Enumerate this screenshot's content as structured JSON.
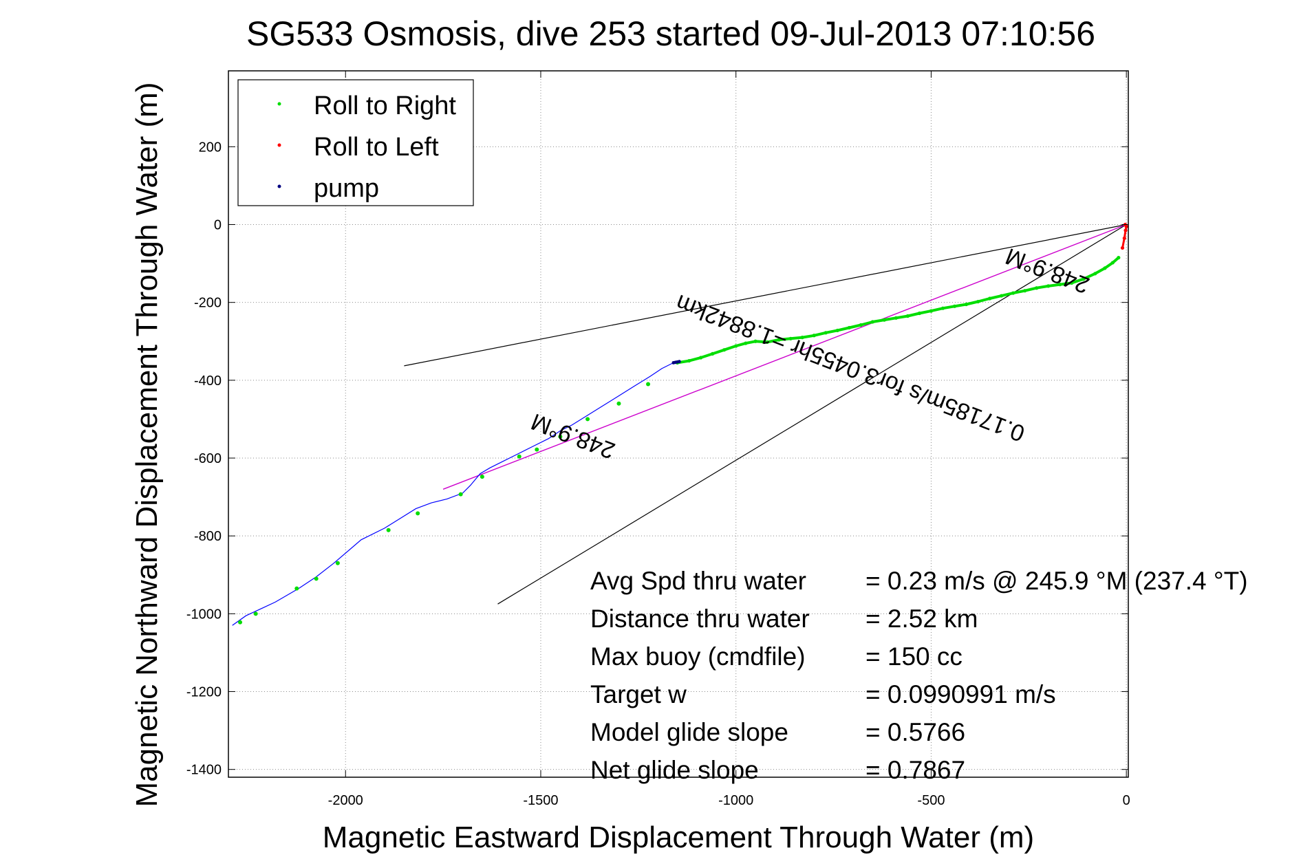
{
  "chart_data": {
    "type": "line",
    "title": "SG533 Osmosis, dive 253 started 09-Jul-2013 07:10:56",
    "xlabel": "Magnetic Eastward Displacement Through Water (m)",
    "ylabel": "Magnetic Northward Displacement Through Water (m)",
    "xlim": [
      -2300,
      5
    ],
    "ylim": [
      -1420,
      395
    ],
    "xticks": [
      -2000,
      -1500,
      -1000,
      -500,
      0
    ],
    "yticks": [
      200,
      0,
      -200,
      -400,
      -600,
      -800,
      -1000,
      -1200,
      -1400
    ],
    "xtick_labels": [
      "-2000",
      "-1500",
      "-1000",
      "-500",
      "0"
    ],
    "ytick_labels": [
      "200",
      "0",
      "-200",
      "-400",
      "-600",
      "-800",
      "-1000",
      "-1200",
      "-1400"
    ],
    "grid": true,
    "legend_position": "top-left",
    "colors": {
      "roll_right": "#00dd00",
      "roll_left": "#ff0000",
      "pump": "#000080",
      "track": "#0000ff",
      "course_line": "#cc00cc",
      "cone": "#000000"
    },
    "legend": [
      {
        "label": "Roll to Right",
        "color": "#00dd00"
      },
      {
        "label": "Roll to Left",
        "color": "#ff0000"
      },
      {
        "label": "pump",
        "color": "#000080"
      }
    ],
    "series": [
      {
        "name": "track",
        "x": [
          -2290,
          -2255,
          -2180,
          -2120,
          -2075,
          -2030,
          -1960,
          -1900,
          -1860,
          -1820,
          -1780,
          -1740,
          -1700,
          -1680,
          -1655,
          -1630,
          -1600,
          -1560,
          -1520,
          -1480,
          -1450,
          -1420,
          -1380,
          -1340,
          -1300,
          -1260,
          -1220,
          -1190,
          -1160,
          -1150
        ],
        "y": [
          -1030,
          -1005,
          -970,
          -935,
          -905,
          -870,
          -810,
          -780,
          -755,
          -730,
          -715,
          -705,
          -690,
          -670,
          -640,
          -625,
          -610,
          -590,
          -570,
          -550,
          -530,
          -515,
          -490,
          -465,
          -440,
          -415,
          -390,
          -370,
          -355,
          -352
        ]
      },
      {
        "name": "Roll to Right",
        "x": [
          -1150,
          -1120,
          -1090,
          -1060,
          -1030,
          -1000,
          -975,
          -950,
          -920,
          -890,
          -860,
          -830,
          -800,
          -770,
          -740,
          -710,
          -680,
          -650,
          -620,
          -590,
          -560,
          -530,
          -500,
          -470,
          -440,
          -410,
          -380,
          -350,
          -320,
          -290,
          -260,
          -230,
          -200,
          -170,
          -140,
          -110,
          -80,
          -55,
          -35,
          -20
        ],
        "y": [
          -355,
          -350,
          -342,
          -332,
          -322,
          -312,
          -305,
          -300,
          -302,
          -296,
          -293,
          -290,
          -285,
          -278,
          -272,
          -265,
          -258,
          -250,
          -245,
          -240,
          -235,
          -228,
          -222,
          -215,
          -210,
          -205,
          -198,
          -190,
          -183,
          -176,
          -170,
          -163,
          -158,
          -154,
          -150,
          -140,
          -126,
          -112,
          -98,
          -85
        ]
      },
      {
        "name": "Roll to Left",
        "x": [
          -10,
          -5,
          -2,
          0,
          -3
        ],
        "y": [
          -60,
          -35,
          -15,
          -5,
          0
        ]
      },
      {
        "name": "pump",
        "x": [
          -1160,
          -1155,
          -1150,
          -1145
        ],
        "y": [
          -355,
          -354,
          -353,
          -352
        ]
      },
      {
        "name": "course_line",
        "x": [
          -1750,
          0
        ],
        "y": [
          -680,
          0
        ]
      },
      {
        "name": "cone_upper",
        "x": [
          -1850,
          0
        ],
        "y": [
          -363,
          0
        ]
      },
      {
        "name": "cone_lower",
        "x": [
          -1610,
          0
        ],
        "y": [
          -975,
          0
        ]
      }
    ],
    "right_roll_markers": {
      "x": [
        -2270,
        -2230,
        -2125,
        -2075,
        -2020,
        -1890,
        -1815,
        -1705,
        -1650,
        -1555,
        -1510,
        -1450,
        -1380,
        -1300,
        -1225
      ],
      "y": [
        -1022,
        -1000,
        -935,
        -910,
        -870,
        -785,
        -742,
        -693,
        -648,
        -596,
        -578,
        -545,
        -500,
        -460,
        -410
      ]
    },
    "course_labels": [
      {
        "text": "248.9°M",
        "x": -1410,
        "y": -525
      },
      {
        "text": "248.9°M",
        "x": -195,
        "y": -100
      },
      {
        "text": "0.17185m/s for3.0455hr =1.8842km",
        "x": -700,
        "y": -350
      }
    ],
    "stats": [
      {
        "label": "Avg Spd thru water",
        "value": "=  0.23 m/s @ 245.9 °M (237.4 °T)"
      },
      {
        "label": "Distance thru water",
        "value": "=  2.52 km"
      },
      {
        "label": "Max buoy (cmdfile)",
        "value": "= 150 cc"
      },
      {
        "label": "Target w",
        "value": "= 0.0990991 m/s"
      },
      {
        "label": "Model glide slope",
        "value": "= 0.5766"
      },
      {
        "label": "Net glide slope",
        "value": "= 0.7867"
      }
    ]
  }
}
